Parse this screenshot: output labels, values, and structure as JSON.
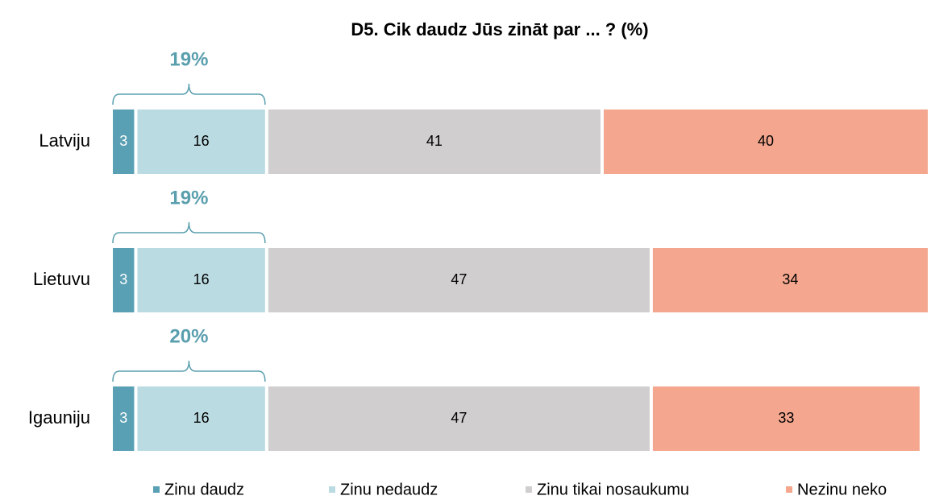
{
  "chart_data": {
    "type": "stacked_bar",
    "orientation": "horizontal",
    "title": "D5. Cik daudz Jūs zināt par ... ? (%)",
    "categories": [
      "Latviju",
      "Lietuvu",
      "Igauniju"
    ],
    "series": [
      {
        "name": "Zinu daudz",
        "color": "#5aa0b4",
        "values": [
          3,
          3,
          3
        ]
      },
      {
        "name": "Zinu nedaudz",
        "color": "#bbdbe2",
        "values": [
          16,
          16,
          16
        ]
      },
      {
        "name": "Zinu tikai nosaukumu",
        "color": "#d0cece",
        "values": [
          41,
          47,
          47
        ]
      },
      {
        "name": "Nezinu neko",
        "color": "#f4a78e",
        "values": [
          40,
          34,
          33
        ]
      }
    ],
    "annotations": [
      "19%",
      "19%",
      "20%"
    ],
    "annotation_color": "#5a9fae",
    "xlim": [
      0,
      100
    ],
    "legend": "bottom"
  }
}
